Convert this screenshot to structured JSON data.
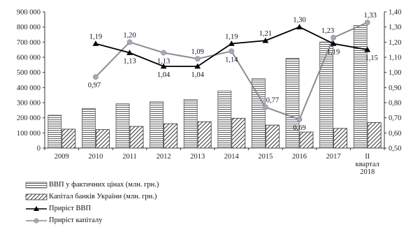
{
  "chart_data": {
    "type": "bar",
    "categories": [
      "2009",
      "2010",
      "2011",
      "2012",
      "2013",
      "2014",
      "2015",
      "2016",
      "2017",
      [
        "II",
        "квартал",
        "2018"
      ]
    ],
    "series": [
      {
        "name": "ВВП у фактичних цінах (млн. грн.)",
        "kind": "bar",
        "pattern": "horizontal-stripes",
        "axis": "left",
        "values": [
          217000,
          262000,
          293000,
          306000,
          321000,
          378000,
          459000,
          593000,
          701000,
          810000
        ]
      },
      {
        "name": "Капітал банків України (млн. грн.)",
        "kind": "bar",
        "pattern": "diagonal-hatch",
        "axis": "left",
        "values": [
          125000,
          122000,
          143000,
          161000,
          174000,
          197000,
          152000,
          106000,
          130000,
          169000
        ]
      },
      {
        "name": "Приріст ВВП",
        "kind": "line",
        "marker": "triangle",
        "axis": "right",
        "values": [
          null,
          1.19,
          1.13,
          1.04,
          1.04,
          1.19,
          1.21,
          1.3,
          1.19,
          1.15
        ],
        "labels": [
          null,
          "1,19",
          "1,13",
          "1,04",
          "1,04",
          "1,19",
          "1,21",
          "1,30",
          "1,19",
          "1,15"
        ]
      },
      {
        "name": "Приріст капіталу",
        "kind": "line",
        "marker": "circle",
        "axis": "right",
        "values": [
          null,
          0.97,
          1.2,
          1.13,
          1.09,
          1.14,
          0.77,
          0.69,
          1.23,
          1.33
        ],
        "labels": [
          null,
          "0,97",
          "1,20",
          "1,13",
          "1,09",
          "1,14",
          "0,77",
          "0,69",
          "1,23",
          "1,33"
        ]
      }
    ],
    "left_axis": {
      "ylim": [
        0,
        900000
      ],
      "ticks": [
        "0",
        "100 000",
        "200 000",
        "300 000",
        "400 000",
        "500 000",
        "600 000",
        "700 000",
        "800 000",
        "900 000"
      ]
    },
    "right_axis": {
      "ylim": [
        0.5,
        1.4
      ],
      "ticks": [
        "0,50",
        "0,60",
        "0,70",
        "0,80",
        "0,90",
        "1,00",
        "1,10",
        "1,20",
        "1,30",
        "1,40"
      ]
    },
    "grid": false,
    "legend_position": "bottom-left",
    "title": "",
    "xlabel": "",
    "ylabel": "",
    "colors": {
      "bars": "#555555",
      "gdp_line": "#000000",
      "capital_line": "#8c8c8c",
      "capital_marker": "#a7a7c2",
      "axis": "#333333"
    }
  }
}
